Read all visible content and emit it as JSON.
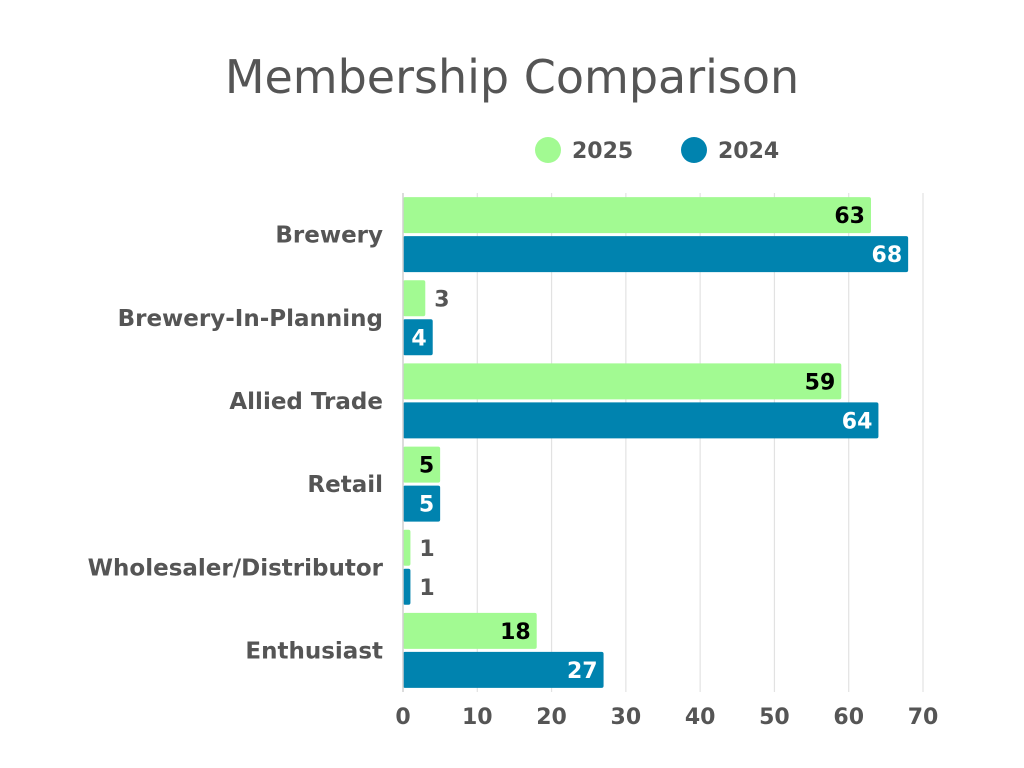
{
  "chart_data": {
    "type": "bar",
    "orientation": "horizontal",
    "title": "Membership Comparison",
    "xlabel": "",
    "ylabel": "",
    "categories": [
      "Brewery",
      "Brewery-In-Planning",
      "Allied Trade",
      "Retail",
      "Wholesaler/Distributor",
      "Enthusiast"
    ],
    "series": [
      {
        "name": "2025",
        "values": [
          63,
          3,
          59,
          5,
          1,
          18
        ],
        "color": "#A2FA92"
      },
      {
        "name": "2024",
        "values": [
          68,
          4,
          64,
          5,
          1,
          27
        ],
        "color": "#0083AF"
      }
    ],
    "xlim": [
      0,
      70
    ],
    "ticks": [
      0,
      10,
      20,
      30,
      40,
      50,
      60,
      70
    ],
    "grid": "vertical",
    "legend": "top",
    "text_color": "#555555",
    "gridline_color": "#E2E2E2"
  }
}
